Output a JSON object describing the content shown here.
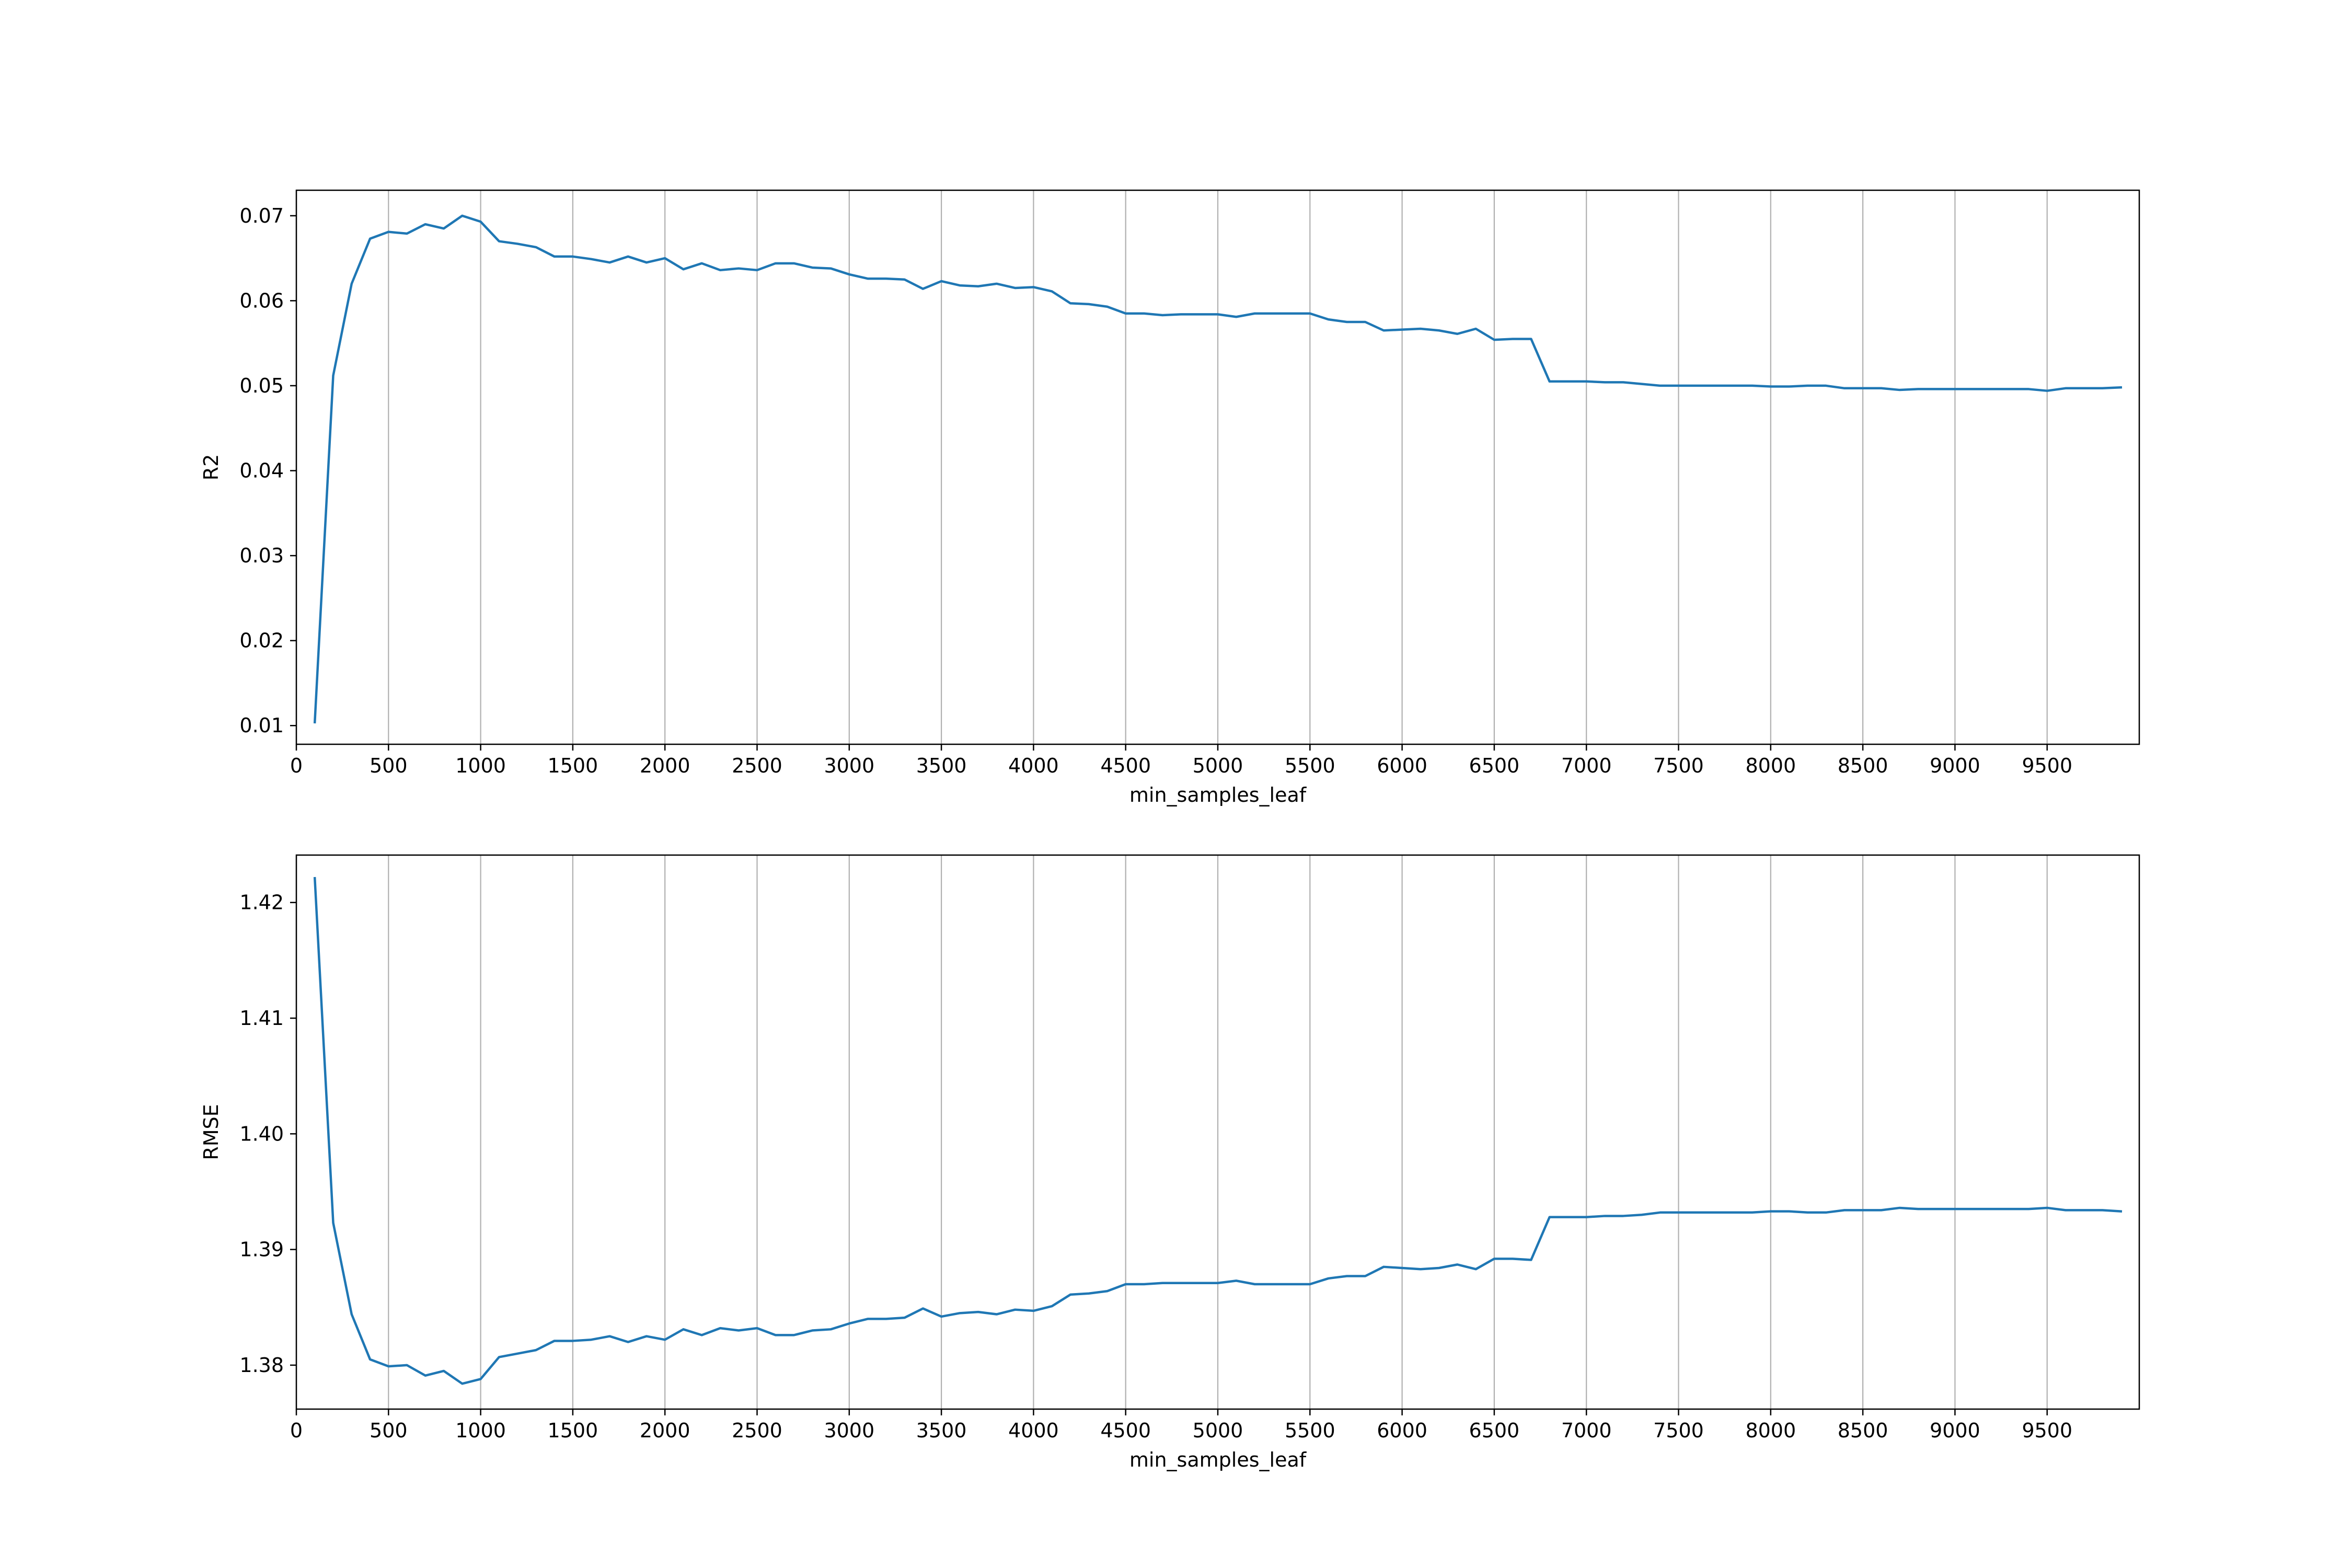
{
  "colors": {
    "line": "#1f77b4",
    "grid": "#b0b0b0",
    "axis": "#000000",
    "background": "#ffffff"
  },
  "chart_data": [
    {
      "type": "line",
      "xlabel": "min_samples_leaf",
      "ylabel": "R2",
      "xlim": [
        0,
        10000
      ],
      "ylim": [
        0.0078,
        0.073
      ],
      "xticks": [
        0,
        500,
        1000,
        1500,
        2000,
        2500,
        3000,
        3500,
        4000,
        4500,
        5000,
        5500,
        6000,
        6500,
        7000,
        7500,
        8000,
        8500,
        9000,
        9500
      ],
      "xtick_labels": [
        "0",
        "500",
        "1000",
        "1500",
        "2000",
        "2500",
        "3000",
        "3500",
        "4000",
        "4500",
        "5000",
        "5500",
        "6000",
        "6500",
        "7000",
        "7500",
        "8000",
        "8500",
        "9000",
        "9500"
      ],
      "yticks": [
        0.01,
        0.02,
        0.03,
        0.04,
        0.05,
        0.06,
        0.07
      ],
      "ytick_labels": [
        "0.01",
        "0.02",
        "0.03",
        "0.04",
        "0.05",
        "0.06",
        "0.07"
      ],
      "grid": "vertical",
      "x": [
        100,
        200,
        300,
        400,
        500,
        600,
        700,
        800,
        900,
        1000,
        1100,
        1200,
        1300,
        1400,
        1500,
        1600,
        1700,
        1800,
        1900,
        2000,
        2100,
        2200,
        2300,
        2400,
        2500,
        2600,
        2700,
        2800,
        2900,
        3000,
        3100,
        3200,
        3300,
        3400,
        3500,
        3600,
        3700,
        3800,
        3900,
        4000,
        4100,
        4200,
        4300,
        4400,
        4500,
        4600,
        4700,
        4800,
        4900,
        5000,
        5100,
        5200,
        5300,
        5400,
        5500,
        5600,
        5700,
        5800,
        5900,
        6000,
        6100,
        6200,
        6300,
        6400,
        6500,
        6600,
        6700,
        6800,
        6900,
        7000,
        7100,
        7200,
        7300,
        7400,
        7500,
        7600,
        7700,
        7800,
        7900,
        8000,
        8100,
        8200,
        8300,
        8400,
        8500,
        8600,
        8700,
        8800,
        8900,
        9000,
        9100,
        9200,
        9300,
        9400,
        9500,
        9600,
        9700,
        9800,
        9900
      ],
      "series": [
        {
          "values": [
            0.0104,
            0.0512,
            0.062,
            0.0673,
            0.0681,
            0.0679,
            0.069,
            0.0685,
            0.07,
            0.0693,
            0.067,
            0.0667,
            0.0663,
            0.0652,
            0.0652,
            0.0649,
            0.0645,
            0.0652,
            0.0645,
            0.065,
            0.0637,
            0.0644,
            0.0636,
            0.0638,
            0.0636,
            0.0644,
            0.0644,
            0.0639,
            0.0638,
            0.0631,
            0.0626,
            0.0626,
            0.0625,
            0.0614,
            0.0623,
            0.0618,
            0.0617,
            0.062,
            0.0615,
            0.0616,
            0.0611,
            0.0597,
            0.0596,
            0.0593,
            0.0585,
            0.0585,
            0.0583,
            0.0584,
            0.0584,
            0.0584,
            0.0581,
            0.0585,
            0.0585,
            0.0585,
            0.0585,
            0.0578,
            0.0575,
            0.0575,
            0.0565,
            0.0566,
            0.0567,
            0.0565,
            0.0561,
            0.0567,
            0.0554,
            0.0555,
            0.0555,
            0.0505,
            0.0505,
            0.0505,
            0.0504,
            0.0504,
            0.0502,
            0.05,
            0.05,
            0.05,
            0.05,
            0.05,
            0.05,
            0.0499,
            0.0499,
            0.05,
            0.05,
            0.0497,
            0.0497,
            0.0497,
            0.0495,
            0.0496,
            0.0496,
            0.0496,
            0.0496,
            0.0496,
            0.0496,
            0.0496,
            0.0494,
            0.0497,
            0.0497,
            0.0497,
            0.0498
          ]
        }
      ]
    },
    {
      "type": "line",
      "xlabel": "min_samples_leaf",
      "ylabel": "RMSE",
      "xlim": [
        0,
        10000
      ],
      "ylim": [
        1.3762,
        1.4241
      ],
      "xticks": [
        0,
        500,
        1000,
        1500,
        2000,
        2500,
        3000,
        3500,
        4000,
        4500,
        5000,
        5500,
        6000,
        6500,
        7000,
        7500,
        8000,
        8500,
        9000,
        9500
      ],
      "xtick_labels": [
        "0",
        "500",
        "1000",
        "1500",
        "2000",
        "2500",
        "3000",
        "3500",
        "4000",
        "4500",
        "5000",
        "5500",
        "6000",
        "6500",
        "7000",
        "7500",
        "8000",
        "8500",
        "9000",
        "9500"
      ],
      "yticks": [
        1.38,
        1.39,
        1.4,
        1.41,
        1.42
      ],
      "ytick_labels": [
        "1.38",
        "1.39",
        "1.40",
        "1.41",
        "1.42"
      ],
      "grid": "vertical",
      "x": [
        100,
        200,
        300,
        400,
        500,
        600,
        700,
        800,
        900,
        1000,
        1100,
        1200,
        1300,
        1400,
        1500,
        1600,
        1700,
        1800,
        1900,
        2000,
        2100,
        2200,
        2300,
        2400,
        2500,
        2600,
        2700,
        2800,
        2900,
        3000,
        3100,
        3200,
        3300,
        3400,
        3500,
        3600,
        3700,
        3800,
        3900,
        4000,
        4100,
        4200,
        4300,
        4400,
        4500,
        4600,
        4700,
        4800,
        4900,
        5000,
        5100,
        5200,
        5300,
        5400,
        5500,
        5600,
        5700,
        5800,
        5900,
        6000,
        6100,
        6200,
        6300,
        6400,
        6500,
        6600,
        6700,
        6800,
        6900,
        7000,
        7100,
        7200,
        7300,
        7400,
        7500,
        7600,
        7700,
        7800,
        7900,
        8000,
        8100,
        8200,
        8300,
        8400,
        8500,
        8600,
        8700,
        8800,
        8900,
        9000,
        9100,
        9200,
        9300,
        9400,
        9500,
        9600,
        9700,
        9800,
        9900
      ],
      "series": [
        {
          "values": [
            1.4221,
            1.3923,
            1.3844,
            1.3805,
            1.3799,
            1.38,
            1.3791,
            1.3795,
            1.3784,
            1.3788,
            1.3807,
            1.381,
            1.3813,
            1.3821,
            1.3821,
            1.3822,
            1.3825,
            1.382,
            1.3825,
            1.3822,
            1.3831,
            1.3826,
            1.3832,
            1.383,
            1.3832,
            1.3826,
            1.3826,
            1.383,
            1.3831,
            1.3836,
            1.384,
            1.384,
            1.3841,
            1.3849,
            1.3842,
            1.3845,
            1.3846,
            1.3844,
            1.3848,
            1.3847,
            1.3851,
            1.3861,
            1.3862,
            1.3864,
            1.387,
            1.387,
            1.3871,
            1.3871,
            1.3871,
            1.3871,
            1.3873,
            1.387,
            1.387,
            1.387,
            1.387,
            1.3875,
            1.3877,
            1.3877,
            1.3885,
            1.3884,
            1.3883,
            1.3884,
            1.3887,
            1.3883,
            1.3892,
            1.3892,
            1.3891,
            1.3928,
            1.3928,
            1.3928,
            1.3929,
            1.3929,
            1.393,
            1.3932,
            1.3932,
            1.3932,
            1.3932,
            1.3932,
            1.3932,
            1.3933,
            1.3933,
            1.3932,
            1.3932,
            1.3934,
            1.3934,
            1.3934,
            1.3936,
            1.3935,
            1.3935,
            1.3935,
            1.3935,
            1.3935,
            1.3935,
            1.3935,
            1.3936,
            1.3934,
            1.3934,
            1.3934,
            1.3933
          ]
        }
      ]
    }
  ]
}
